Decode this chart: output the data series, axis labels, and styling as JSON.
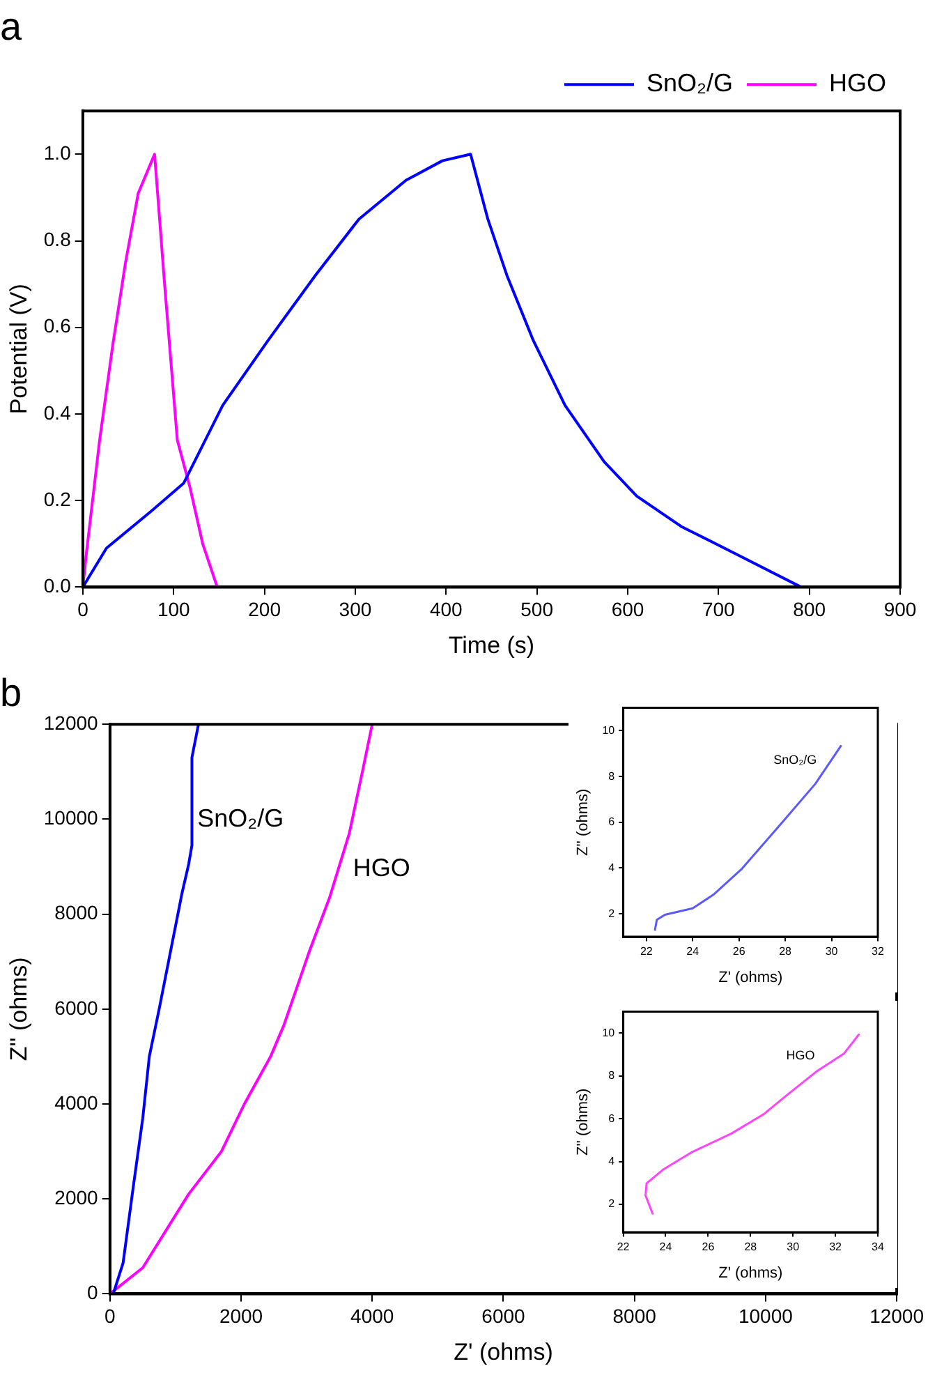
{
  "chart_data": [
    {
      "type": "line",
      "title": "a",
      "xlabel": "Time (s)",
      "ylabel": "Potential (V)",
      "xlim": [
        0,
        900
      ],
      "ylim": [
        0,
        1.1
      ],
      "xticks": [
        0,
        100,
        200,
        300,
        400,
        500,
        600,
        700,
        800,
        900
      ],
      "yticks": [
        {
          "value": 0,
          "label": "0.0"
        },
        0.2,
        0.4,
        0.6,
        0.8,
        {
          "value": 1,
          "label": "1.0"
        }
      ],
      "grid": false,
      "legend": "top right",
      "marker": "none",
      "line_style": "solid",
      "series": [
        {
          "name": "SnO₂/G",
          "color": "#0000ff",
          "x": [
            0,
            26,
            75,
            111,
            154,
            204,
            256,
            304,
            356,
            396,
            427,
            446,
            467,
            496,
            531,
            574,
            610,
            659,
            716,
            791
          ],
          "values": [
            0,
            0.09,
            0.175,
            0.24,
            0.42,
            0.57,
            0.72,
            0.85,
            0.94,
            0.985,
            1.0,
            0.85,
            0.72,
            0.57,
            0.42,
            0.29,
            0.21,
            0.14,
            0.08,
            0
          ]
        },
        {
          "name": "HGO",
          "color": "#ff00ff",
          "x": [
            0,
            4,
            18.5,
            33,
            47,
            61,
            79,
            90,
            104,
            118,
            132,
            148
          ],
          "values": [
            0,
            0.08,
            0.34,
            0.56,
            0.75,
            0.91,
            1.0,
            0.7,
            0.34,
            0.23,
            0.1,
            0
          ]
        }
      ]
    },
    {
      "type": "line",
      "title": "b",
      "xlabel": "Z' (ohms)",
      "ylabel": "Z'' (ohms)",
      "xlim": [
        0,
        12000
      ],
      "ylim": [
        0,
        12000
      ],
      "xticks": [
        0,
        2000,
        4000,
        6000,
        8000,
        10000,
        12000
      ],
      "yticks": [
        0,
        2000,
        4000,
        6000,
        8000,
        10000,
        12000
      ],
      "grid": false,
      "marker": "none",
      "line_style": "solid",
      "annotations": [
        "SnO₂/G",
        "HGO"
      ],
      "series": [
        {
          "color": "#0000ff",
          "x": [
            50,
            200,
            350,
            500,
            600,
            750,
            900,
            1100,
            1200,
            1250,
            1250,
            1350
          ],
          "values": [
            0,
            650,
            2200,
            3700,
            5000,
            6000,
            7050,
            8450,
            9050,
            9450,
            11300,
            12000
          ]
        },
        {
          "color": "#ff00ff",
          "x": [
            0,
            500,
            1200,
            1700,
            2050,
            2450,
            2650,
            3050,
            3350,
            3650,
            3850,
            4000
          ],
          "values": [
            0,
            550,
            2100,
            3000,
            4000,
            5000,
            5650,
            7250,
            8350,
            9700,
            11000,
            12000
          ]
        }
      ]
    },
    {
      "type": "line",
      "xlabel": "Z' (ohms)",
      "ylabel": "Z'' (ohms)",
      "xlim": [
        21,
        32
      ],
      "ylim": [
        1,
        11
      ],
      "xticks": [
        22,
        24,
        26,
        28,
        30,
        32
      ],
      "yticks": [
        2,
        4,
        6,
        8,
        10
      ],
      "grid": false,
      "marker": "none",
      "line_style": "solid",
      "annotations": [
        "SnO₂/G"
      ],
      "series": [
        {
          "color": "#5a5aff",
          "x": [
            22.37,
            22.45,
            22.8,
            24.0,
            24.9,
            26.1,
            27.9,
            29.3,
            30.4
          ],
          "values": [
            1.3,
            1.74,
            1.96,
            2.24,
            2.84,
            3.94,
            6.03,
            7.68,
            9.33
          ]
        }
      ]
    },
    {
      "type": "line",
      "xlabel": "Z' (ohms)",
      "ylabel": "Z'' (ohms)",
      "xlim": [
        22,
        34
      ],
      "ylim": [
        0.7,
        11
      ],
      "xticks": [
        22,
        24,
        26,
        28,
        30,
        32,
        34
      ],
      "yticks": [
        2,
        4,
        6,
        8,
        10
      ],
      "grid": false,
      "marker": "none",
      "line_style": "solid",
      "annotations": [
        "HGO"
      ],
      "series": [
        {
          "color": "#ff44ff",
          "x": [
            23.38,
            23.05,
            23.1,
            23.9,
            25.2,
            27.1,
            28.6,
            29.7,
            31.1,
            32.4,
            33.1
          ],
          "values": [
            1.57,
            2.42,
            2.98,
            3.64,
            4.42,
            5.31,
            6.2,
            7.09,
            8.2,
            9.04,
            9.93
          ]
        }
      ]
    }
  ]
}
